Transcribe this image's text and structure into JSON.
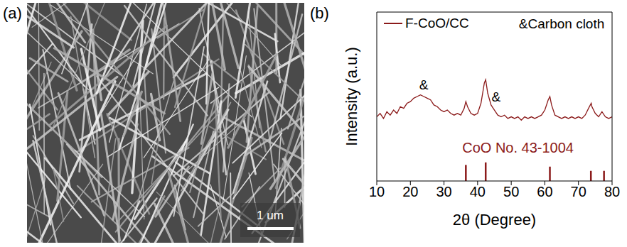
{
  "chart_data": [
    {
      "type": "image",
      "panel": "(a)",
      "scale_bar": "1 um"
    },
    {
      "type": "line",
      "panel": "(b)",
      "x_label": "2θ (Degree)",
      "y_label": "Intensity (a.u.)",
      "xlim": [
        10,
        80
      ],
      "xticks": [
        10,
        20,
        30,
        40,
        50,
        60,
        70,
        80
      ],
      "ylim": [
        0,
        100
      ],
      "yticks": [],
      "tick_labels": "x",
      "legend": "upper left",
      "series": [
        {
          "name": "F-CoO/CC",
          "color": "#8b1a1a",
          "x": [
            10,
            11,
            12,
            13,
            14,
            15,
            16,
            17,
            18,
            19,
            20,
            21,
            22,
            23,
            24,
            25,
            26,
            27,
            28,
            29,
            30,
            31,
            32,
            33,
            34,
            35,
            36,
            36.5,
            37,
            38,
            39,
            40,
            41,
            42,
            42.4,
            43,
            44,
            45,
            46,
            47,
            48,
            49,
            50,
            51,
            52,
            53,
            54,
            55,
            56,
            57,
            58,
            59,
            60,
            61,
            61.5,
            62,
            63,
            64,
            65,
            66,
            67,
            68,
            69,
            70,
            71,
            72,
            73,
            73.8,
            74,
            75,
            76,
            77,
            78,
            79,
            80
          ],
          "values": [
            38,
            40,
            37,
            41,
            39,
            42,
            40,
            44,
            43,
            46,
            47,
            49,
            50,
            51,
            50,
            49,
            48,
            45,
            44,
            42,
            41,
            42,
            40,
            39,
            40,
            39,
            43,
            47,
            44,
            40,
            39,
            40,
            46,
            58,
            60,
            52,
            45,
            42,
            39,
            38,
            39,
            37,
            38,
            37,
            38,
            36,
            38,
            37,
            38,
            37,
            38,
            39,
            42,
            48,
            50,
            45,
            39,
            38,
            37,
            38,
            37,
            38,
            37,
            38,
            37,
            39,
            43,
            46,
            44,
            40,
            38,
            41,
            38,
            37,
            38
          ]
        }
      ],
      "reference": {
        "name": "CoO No. 43-1004",
        "color": "#8b1a1a",
        "x": [
          36.5,
          42.4,
          61.5,
          73.7,
          77.6
        ],
        "values": [
          9.5,
          11,
          8.5,
          6,
          6
        ]
      },
      "annotations": [
        {
          "text": "&",
          "x": 24,
          "y": 57
        },
        {
          "text": "&",
          "x": 45.5,
          "y": 50
        },
        {
          "text": "&Carbon cloth",
          "x": 79,
          "y": 93
        }
      ]
    }
  ]
}
